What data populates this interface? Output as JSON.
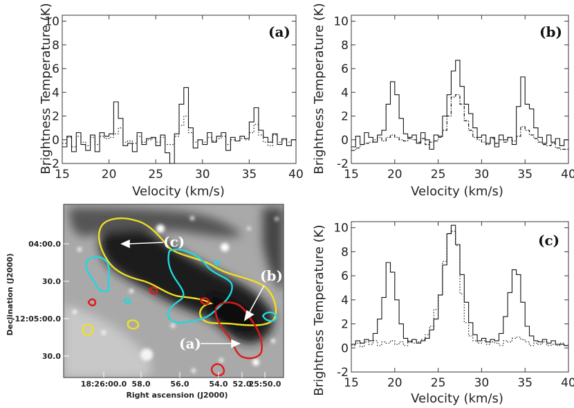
{
  "chart_data": [
    {
      "type": "line",
      "panel_label": "(a)",
      "xlabel": "Velocity (km/s)",
      "ylabel": "Brightness Temperature (K)",
      "xlim": [
        15,
        40
      ],
      "ylim": [
        -2,
        10.5
      ],
      "xticks": [
        15,
        20,
        25,
        30,
        35,
        40
      ],
      "yticks": [
        -2,
        0,
        2,
        4,
        6,
        8,
        10
      ],
      "series": [
        {
          "style": "solid",
          "x": [
            15.0,
            15.5,
            16.0,
            16.5,
            17.0,
            17.5,
            18.0,
            18.5,
            19.0,
            19.5,
            20.0,
            20.5,
            21.0,
            21.5,
            22.0,
            22.5,
            23.0,
            23.5,
            24.0,
            24.5,
            25.0,
            25.5,
            26.0,
            26.5,
            27.0,
            27.5,
            28.0,
            28.5,
            29.0,
            29.5,
            30.0,
            30.5,
            31.0,
            31.5,
            32.0,
            32.5,
            33.0,
            33.5,
            34.0,
            34.5,
            35.0,
            35.5,
            36.0,
            36.5,
            37.0,
            37.5,
            38.0,
            38.5,
            39.0,
            39.5
          ],
          "values": [
            -0.6,
            0.3,
            -1.0,
            0.6,
            -0.4,
            -0.9,
            0.4,
            -1.0,
            0.6,
            0.3,
            0.5,
            3.2,
            1.8,
            -0.5,
            -0.3,
            -1.0,
            0.6,
            -0.4,
            0.1,
            0.2,
            -0.5,
            0.4,
            -1.1,
            -2.0,
            0.5,
            3.0,
            4.4,
            1.0,
            -0.7,
            0.0,
            -0.4,
            0.6,
            -0.2,
            0.3,
            0.6,
            -0.9,
            0.2,
            -0.1,
            0.3,
            0.1,
            1.5,
            2.7,
            0.8,
            0.2,
            -0.2,
            0.5,
            -0.4,
            0.1,
            -0.5,
            0.0
          ]
        },
        {
          "style": "dotted",
          "x": [
            15.0,
            15.5,
            16.0,
            16.5,
            17.0,
            17.5,
            18.0,
            18.5,
            19.0,
            19.5,
            20.0,
            20.5,
            21.0,
            21.5,
            22.0,
            22.5,
            23.0,
            23.5,
            24.0,
            24.5,
            25.0,
            25.5,
            26.0,
            26.5,
            27.0,
            27.5,
            28.0,
            28.5,
            29.0,
            29.5,
            30.0,
            30.5,
            31.0,
            31.5,
            32.0,
            32.5,
            33.0,
            33.5,
            34.0,
            34.5,
            35.0,
            35.5,
            36.0,
            36.5,
            37.0,
            37.5,
            38.0,
            38.5,
            39.0,
            39.5
          ],
          "values": [
            -0.3,
            0.2,
            -0.6,
            0.3,
            -0.2,
            -0.5,
            0.2,
            -0.4,
            0.3,
            0.1,
            0.2,
            0.5,
            1.0,
            -0.2,
            -0.1,
            -0.3,
            0.3,
            -0.2,
            0.0,
            0.1,
            -0.2,
            0.2,
            -0.4,
            -0.4,
            0.3,
            1.2,
            2.0,
            0.6,
            -0.2,
            0.0,
            -0.2,
            0.2,
            -0.1,
            0.1,
            0.3,
            -0.4,
            0.0,
            -0.1,
            0.1,
            0.0,
            0.6,
            1.3,
            0.4,
            -0.2,
            -0.5,
            0.4,
            -0.2,
            0.0,
            -0.2,
            0.0
          ]
        }
      ]
    },
    {
      "type": "line",
      "panel_label": "(b)",
      "xlabel": "Velocity (km/s)",
      "ylabel": "Brightness Temperature (K)",
      "xlim": [
        15,
        40
      ],
      "ylim": [
        -2,
        10.5
      ],
      "xticks": [
        15,
        20,
        25,
        30,
        35,
        40
      ],
      "yticks": [
        -2,
        0,
        2,
        4,
        6,
        8,
        10
      ],
      "series": [
        {
          "style": "solid",
          "x": [
            15.0,
            15.5,
            16.0,
            16.5,
            17.0,
            17.5,
            18.0,
            18.5,
            19.0,
            19.5,
            20.0,
            20.5,
            21.0,
            21.5,
            22.0,
            22.5,
            23.0,
            23.5,
            24.0,
            24.5,
            25.0,
            25.5,
            26.0,
            26.5,
            27.0,
            27.5,
            28.0,
            28.5,
            29.0,
            29.5,
            30.0,
            30.5,
            31.0,
            31.5,
            32.0,
            32.5,
            33.0,
            33.5,
            34.0,
            34.5,
            35.0,
            35.5,
            36.0,
            36.5,
            37.0,
            37.5,
            38.0,
            38.5,
            39.0,
            39.5
          ],
          "values": [
            -0.6,
            0.3,
            -0.4,
            0.6,
            0.2,
            -0.2,
            0.4,
            0.8,
            3.0,
            4.9,
            3.8,
            1.8,
            0.5,
            0.2,
            0.4,
            -0.3,
            0.6,
            0.0,
            -0.8,
            0.4,
            0.3,
            2.0,
            3.8,
            5.8,
            6.7,
            4.5,
            3.0,
            2.2,
            1.0,
            0.2,
            0.4,
            -0.3,
            0.2,
            -0.6,
            0.4,
            0.0,
            0.2,
            -0.4,
            2.8,
            5.3,
            3.0,
            2.6,
            1.0,
            0.2,
            -0.3,
            0.4,
            -0.2,
            0.1,
            -0.5,
            0.0
          ]
        },
        {
          "style": "dash-dot",
          "x": [
            15.0,
            15.5,
            16.0,
            16.5,
            17.0,
            17.5,
            18.0,
            18.5,
            19.0,
            19.5,
            20.0,
            20.5,
            21.0,
            21.5,
            22.0,
            22.5,
            23.0,
            23.5,
            24.0,
            24.5,
            25.0,
            25.5,
            26.0,
            26.5,
            27.0,
            27.5,
            28.0,
            28.5,
            29.0,
            29.5,
            30.0,
            30.5,
            31.0,
            31.5,
            32.0,
            32.5,
            33.0,
            33.5,
            34.0,
            34.5,
            35.0,
            35.5,
            36.0,
            36.5,
            37.0,
            37.5,
            38.0,
            38.5,
            39.0,
            39.5
          ],
          "values": [
            -0.9,
            -0.7,
            -0.4,
            -0.3,
            -0.2,
            0.0,
            0.2,
            -0.1,
            0.2,
            0.4,
            0.2,
            0.0,
            -0.1,
            0.1,
            0.0,
            -0.2,
            0.1,
            -0.4,
            -0.2,
            -0.1,
            0.2,
            0.8,
            2.0,
            3.6,
            3.8,
            3.0,
            1.6,
            0.8,
            0.2,
            0.0,
            -0.2,
            -0.4,
            0.1,
            -0.3,
            0.0,
            -0.2,
            0.2,
            -0.1,
            0.3,
            1.1,
            0.8,
            0.4,
            0.1,
            -0.2,
            -0.4,
            -0.5,
            -0.3,
            -0.7,
            -0.8,
            -0.8
          ]
        }
      ]
    },
    {
      "type": "line",
      "panel_label": "(c)",
      "xlabel": "Velocity (km/s)",
      "ylabel": "Brightness Temperature (K)",
      "xlim": [
        15,
        40
      ],
      "ylim": [
        -2,
        10.5
      ],
      "xticks": [
        15,
        20,
        25,
        30,
        35,
        40
      ],
      "yticks": [
        -2,
        0,
        2,
        4,
        6,
        8,
        10
      ],
      "series": [
        {
          "style": "solid",
          "x": [
            15.0,
            15.5,
            16.0,
            16.5,
            17.0,
            17.5,
            18.0,
            18.5,
            19.0,
            19.5,
            20.0,
            20.5,
            21.0,
            21.5,
            22.0,
            22.5,
            23.0,
            23.5,
            24.0,
            24.5,
            25.0,
            25.5,
            26.0,
            26.5,
            27.0,
            27.5,
            28.0,
            28.5,
            29.0,
            29.5,
            30.0,
            30.5,
            31.0,
            31.5,
            32.0,
            32.5,
            33.0,
            33.5,
            34.0,
            34.5,
            35.0,
            35.5,
            36.0,
            36.5,
            37.0,
            37.5,
            38.0,
            38.5,
            39.0,
            39.5
          ],
          "values": [
            0.3,
            0.6,
            0.4,
            0.7,
            0.6,
            1.2,
            2.4,
            4.2,
            7.1,
            6.3,
            4.0,
            2.0,
            0.8,
            0.5,
            0.7,
            0.4,
            0.6,
            0.8,
            1.5,
            2.4,
            4.4,
            6.9,
            9.5,
            10.2,
            8.6,
            6.1,
            3.8,
            2.1,
            1.1,
            0.6,
            0.8,
            0.5,
            0.7,
            0.6,
            1.2,
            2.6,
            4.6,
            6.5,
            6.1,
            3.8,
            1.8,
            1.0,
            0.6,
            0.5,
            0.7,
            0.4,
            0.6,
            0.3,
            0.3,
            0.2
          ]
        },
        {
          "style": "dotted",
          "x": [
            15.0,
            15.5,
            16.0,
            16.5,
            17.0,
            17.5,
            18.0,
            18.5,
            19.0,
            19.5,
            20.0,
            20.5,
            21.0,
            21.5,
            22.0,
            22.5,
            23.0,
            23.5,
            24.0,
            24.5,
            25.0,
            25.5,
            26.0,
            26.5,
            27.0,
            27.5,
            28.0,
            28.5,
            29.0,
            29.5,
            30.0,
            30.5,
            31.0,
            31.5,
            32.0,
            32.5,
            33.0,
            33.5,
            34.0,
            34.5,
            35.0,
            35.5,
            36.0,
            36.5,
            37.0,
            37.5,
            38.0,
            38.5,
            39.0,
            39.5
          ],
          "values": [
            0.2,
            0.4,
            0.1,
            0.5,
            0.3,
            0.6,
            0.2,
            0.5,
            0.4,
            0.6,
            0.3,
            0.5,
            0.2,
            0.6,
            0.4,
            0.5,
            0.7,
            1.1,
            1.8,
            3.2,
            4.4,
            7.2,
            9.5,
            9.7,
            8.5,
            4.5,
            2.1,
            1.0,
            0.6,
            0.4,
            0.6,
            0.3,
            0.5,
            0.4,
            0.2,
            0.6,
            0.5,
            0.8,
            0.9,
            0.7,
            0.5,
            0.2,
            0.4,
            0.3,
            0.5,
            0.2,
            0.3,
            0.2,
            0.4,
            0.2
          ]
        }
      ]
    }
  ],
  "sky_image": {
    "ylabel": "Declination (J2000)",
    "xlabel": "Right ascension (J2000)",
    "dec_ticks": [
      "04:00.0",
      "30.0",
      "-12:05:00.0",
      "30.0"
    ],
    "ra_ticks": [
      "18:26:00.0",
      "58.0",
      "56.0",
      "54.0",
      "52.0",
      "25:50.0"
    ],
    "markers": [
      "(a)",
      "(b)",
      "(c)"
    ],
    "contour_colors": {
      "yellow": "#f0e020",
      "cyan": "#20d8e0",
      "red": "#e01818"
    }
  }
}
